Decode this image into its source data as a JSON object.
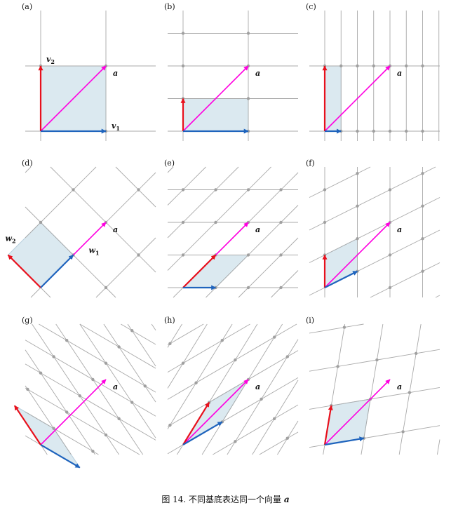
{
  "caption": {
    "text": "图 14. 不同基底表达同一个向量",
    "symbol": "a"
  },
  "colors": {
    "red": "#e8101c",
    "blue": "#1f64bd",
    "magenta": "#ff00e0",
    "grid": "#a9a9a9",
    "fill": "#dbe9f0",
    "fill_stroke": "#b7cfdd",
    "dot": "#a0a0a0"
  },
  "panels": [
    {
      "label": "(a)",
      "col": 0,
      "row": 0,
      "b1": [
        1,
        0
      ],
      "b2": [
        0,
        1
      ],
      "b1_label": "v",
      "b1_sub": "1",
      "b2_label": "v",
      "b2_sub": "2",
      "a_label": "a"
    },
    {
      "label": "(b)",
      "col": 1,
      "row": 0,
      "b1": [
        1,
        0
      ],
      "b2": [
        0,
        0.5
      ],
      "a_label": "a"
    },
    {
      "label": "(c)",
      "col": 2,
      "row": 0,
      "b1": [
        0.25,
        0
      ],
      "b2": [
        0,
        1
      ],
      "a_label": "a"
    },
    {
      "label": "(d)",
      "col": 0,
      "row": 1,
      "b1": [
        0.5,
        0.5
      ],
      "b2": [
        -0.5,
        0.5
      ],
      "b1_label": "w",
      "b1_sub": "1",
      "b2_label": "w",
      "b2_sub": "2",
      "a_label": "a"
    },
    {
      "label": "(e)",
      "col": 1,
      "row": 1,
      "b1": [
        0.5,
        0
      ],
      "b2": [
        0.5,
        0.5
      ],
      "a_label": "a"
    },
    {
      "label": "(f)",
      "col": 2,
      "row": 1,
      "b1": [
        0.5,
        0.25
      ],
      "b2": [
        0,
        0.5
      ],
      "a_label": "a"
    },
    {
      "label": "(g)",
      "col": 0,
      "row": 2,
      "b1": [
        0.6,
        -0.35
      ],
      "b2": [
        -0.4,
        0.6
      ],
      "a_label": "a"
    },
    {
      "label": "(h)",
      "col": 1,
      "row": 2,
      "b1": [
        0.6,
        0.35
      ],
      "b2": [
        0.4,
        0.65
      ],
      "a_label": "a"
    },
    {
      "label": "(i)",
      "col": 2,
      "row": 2,
      "b1": [
        0.6,
        0.1
      ],
      "b2": [
        0.1,
        0.6
      ],
      "a_label": "a"
    }
  ]
}
